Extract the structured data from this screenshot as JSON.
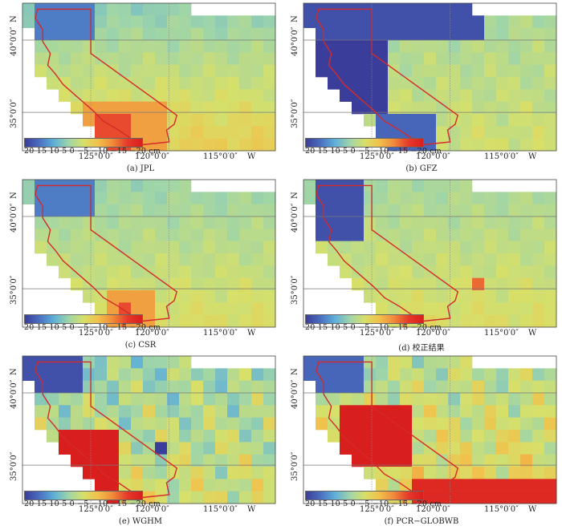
{
  "figure": {
    "axes": {
      "lat_labels": [
        "40°0′0″",
        "35°0′0″"
      ],
      "lat_hemisphere": "N",
      "lon_labels": [
        "125°0′0″",
        "120°0′0″",
        "115°0′0″"
      ],
      "lon_hemisphere": "W"
    },
    "colorbar": {
      "text": "20  15  10  5   0  −5  −10 −15 −20 cm",
      "stops": [
        "#3b3d9b",
        "#4a6fc0",
        "#5fb0d8",
        "#9fd5a8",
        "#d6e06a",
        "#f2c04a",
        "#ef8a3a",
        "#e53a2a",
        "#d91e1e"
      ]
    },
    "panels": [
      {
        "id": "a",
        "caption": "(a) JPL"
      },
      {
        "id": "b",
        "caption": "(b) GFZ"
      },
      {
        "id": "c",
        "caption": "(c) CSR"
      },
      {
        "id": "d",
        "caption": "(d) 校正结果"
      },
      {
        "id": "e",
        "caption": "(e) WGHM"
      },
      {
        "id": "f",
        "caption": "(f) PCR−GLOBWB"
      }
    ]
  }
}
